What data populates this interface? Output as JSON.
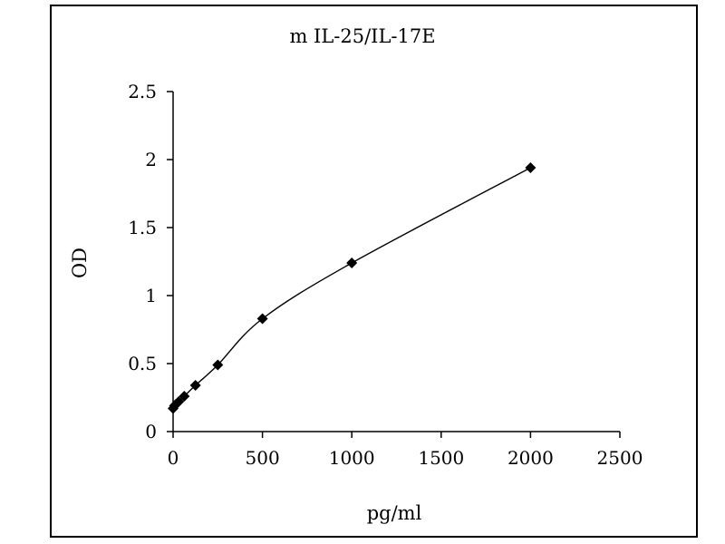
{
  "chart_data": {
    "type": "scatter",
    "title": "m IL-25/IL-17E",
    "xlabel": "pg/ml",
    "ylabel": "OD",
    "xlim": [
      0,
      2500
    ],
    "ylim": [
      0,
      2.5
    ],
    "xticks": [
      0,
      500,
      1000,
      1500,
      2000,
      2500
    ],
    "yticks": [
      0,
      0.5,
      1,
      1.5,
      2,
      2.5
    ],
    "xtick_labels": [
      "0",
      "500",
      "1000",
      "1500",
      "2000",
      "2500"
    ],
    "ytick_labels": [
      "0",
      "0.5",
      "1",
      "1.5",
      "2",
      "2.5"
    ],
    "grid": false,
    "series": [
      {
        "marker": "diamond",
        "line": "smooth",
        "color": "#000000",
        "x": [
          0,
          7.8,
          15.6,
          31.25,
          62.5,
          125,
          250,
          500,
          1000,
          2000
        ],
        "y": [
          0.17,
          0.19,
          0.2,
          0.22,
          0.26,
          0.34,
          0.49,
          0.83,
          1.24,
          1.94
        ]
      }
    ]
  }
}
